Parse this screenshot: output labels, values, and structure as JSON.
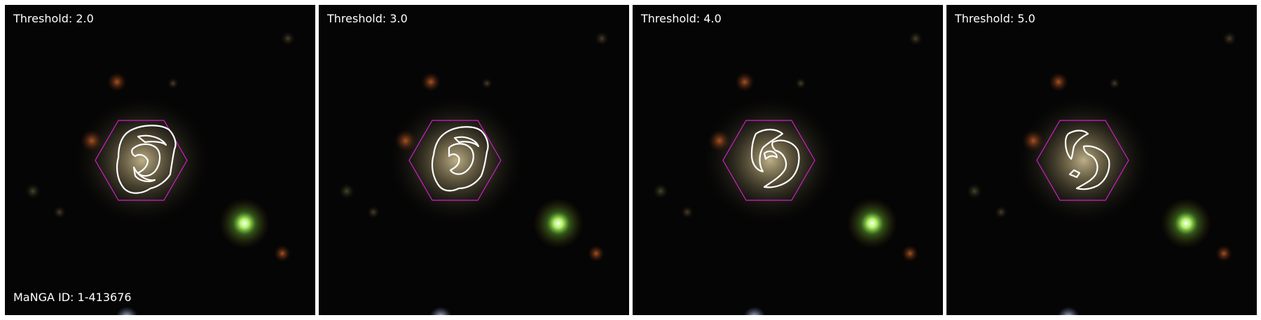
{
  "panels": [
    {
      "threshold_label": "Threshold: 2.0",
      "threshold": 2.0
    },
    {
      "threshold_label": "Threshold: 3.0",
      "threshold": 3.0
    },
    {
      "threshold_label": "Threshold: 4.0",
      "threshold": 4.0
    },
    {
      "threshold_label": "Threshold: 5.0",
      "threshold": 5.0
    }
  ],
  "galaxy_id_label": "MaNGA ID: 1-413676",
  "colors": {
    "background": "#ffffff",
    "sky": "#050505",
    "hexagon": "#d020c8",
    "contour": "#ffffff",
    "galaxy_core": "#b9ac86",
    "green_star": "#8cff5a",
    "orange_star": "#c0521e"
  }
}
